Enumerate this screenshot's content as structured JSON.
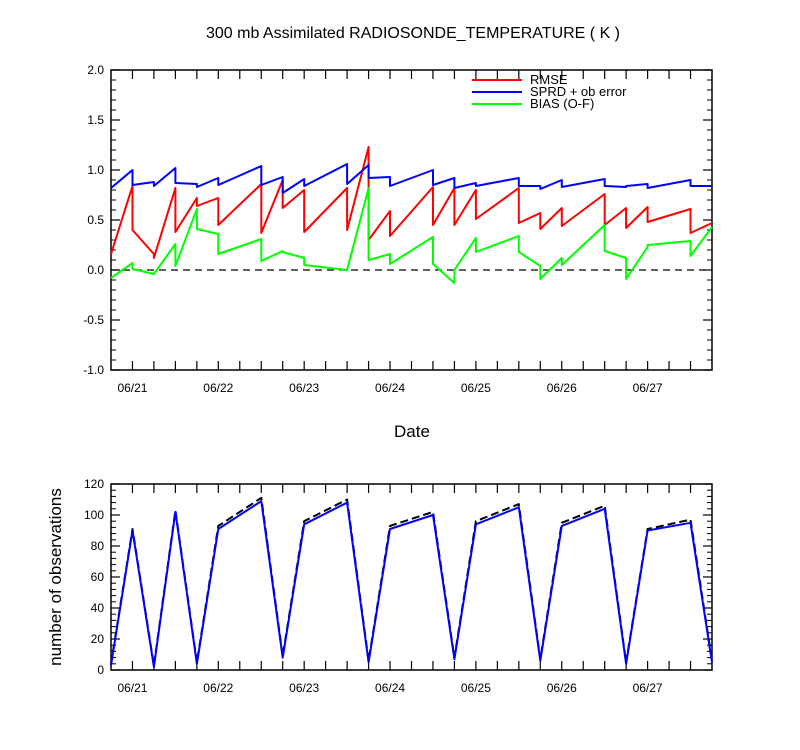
{
  "title": "300 mb Assimilated RADIOSONDE_TEMPERATURE ( K )",
  "chart_data": [
    {
      "type": "line",
      "title": "300 mb Assimilated RADIOSONDE_TEMPERATURE ( K )",
      "xlabel": "Date",
      "ylabel": "",
      "xlim": [
        0,
        7
      ],
      "ylim": [
        -1.0,
        2.0
      ],
      "x_tick_labels": [
        "06/21",
        "06/22",
        "06/23",
        "06/24",
        "06/25",
        "06/26",
        "06/27"
      ],
      "x_tick_positions": [
        0.25,
        1.25,
        2.25,
        3.25,
        4.25,
        5.25,
        6.25
      ],
      "y_ticks": [
        -1.0,
        -0.5,
        0.0,
        0.5,
        1.0,
        1.5,
        2.0
      ],
      "y_tick_labels": [
        "-1.0",
        "-0.5",
        "0.0",
        "0.5",
        "1.0",
        "1.5",
        "2.0"
      ],
      "zero_line": true,
      "legend_position": "top-right",
      "series": [
        {
          "name": "RMSE",
          "color": "#ff0000",
          "points": [
            [
              0,
              0.16
            ],
            [
              0.25,
              0.84
            ],
            [
              0.25,
              0.4
            ],
            [
              0.5,
              0.16
            ],
            [
              0.5,
              0.12
            ],
            [
              0.75,
              0.82
            ],
            [
              0.75,
              0.38
            ],
            [
              1.0,
              0.72
            ],
            [
              1.0,
              0.64
            ],
            [
              1.25,
              0.72
            ],
            [
              1.25,
              0.45
            ],
            [
              1.75,
              0.86
            ],
            [
              1.75,
              0.37
            ],
            [
              2.0,
              0.9
            ],
            [
              2.0,
              0.62
            ],
            [
              2.25,
              0.8
            ],
            [
              2.25,
              0.38
            ],
            [
              2.75,
              0.82
            ],
            [
              2.75,
              0.4
            ],
            [
              3.0,
              1.23
            ],
            [
              3.0,
              0.3
            ],
            [
              3.25,
              0.59
            ],
            [
              3.25,
              0.34
            ],
            [
              3.75,
              0.83
            ],
            [
              3.75,
              0.45
            ],
            [
              4.0,
              0.82
            ],
            [
              4.0,
              0.45
            ],
            [
              4.25,
              0.8
            ],
            [
              4.25,
              0.51
            ],
            [
              4.75,
              0.82
            ],
            [
              4.75,
              0.47
            ],
            [
              5.0,
              0.57
            ],
            [
              5.0,
              0.41
            ],
            [
              5.25,
              0.62
            ],
            [
              5.25,
              0.44
            ],
            [
              5.75,
              0.76
            ],
            [
              5.75,
              0.45
            ],
            [
              6.0,
              0.62
            ],
            [
              6.0,
              0.42
            ],
            [
              6.25,
              0.63
            ],
            [
              6.25,
              0.48
            ],
            [
              6.75,
              0.61
            ],
            [
              6.75,
              0.37
            ],
            [
              7.0,
              0.47
            ]
          ]
        },
        {
          "name": "SPRD + ob error",
          "color": "#0000ff",
          "points": [
            [
              0,
              0.82
            ],
            [
              0.25,
              1.0
            ],
            [
              0.25,
              0.85
            ],
            [
              0.5,
              0.88
            ],
            [
              0.5,
              0.84
            ],
            [
              0.75,
              1.02
            ],
            [
              0.75,
              0.87
            ],
            [
              1.0,
              0.86
            ],
            [
              1.0,
              0.83
            ],
            [
              1.25,
              0.92
            ],
            [
              1.25,
              0.85
            ],
            [
              1.75,
              1.04
            ],
            [
              1.75,
              0.85
            ],
            [
              2.0,
              0.93
            ],
            [
              2.0,
              0.77
            ],
            [
              2.25,
              0.91
            ],
            [
              2.25,
              0.84
            ],
            [
              2.75,
              1.06
            ],
            [
              2.75,
              0.86
            ],
            [
              3.0,
              1.05
            ],
            [
              3.0,
              0.92
            ],
            [
              3.25,
              0.93
            ],
            [
              3.25,
              0.84
            ],
            [
              3.75,
              1.0
            ],
            [
              3.75,
              0.85
            ],
            [
              4.0,
              0.92
            ],
            [
              4.0,
              0.82
            ],
            [
              4.25,
              0.87
            ],
            [
              4.25,
              0.84
            ],
            [
              4.75,
              0.92
            ],
            [
              4.75,
              0.84
            ],
            [
              5.0,
              0.84
            ],
            [
              5.0,
              0.81
            ],
            [
              5.25,
              0.9
            ],
            [
              5.25,
              0.83
            ],
            [
              5.75,
              0.91
            ],
            [
              5.75,
              0.84
            ],
            [
              6.0,
              0.83
            ],
            [
              6.0,
              0.84
            ],
            [
              6.25,
              0.86
            ],
            [
              6.25,
              0.82
            ],
            [
              6.75,
              0.9
            ],
            [
              6.75,
              0.84
            ],
            [
              7.0,
              0.84
            ]
          ]
        },
        {
          "name": "BIAS (O-F)",
          "color": "#00ff00",
          "points": [
            [
              0,
              -0.08
            ],
            [
              0.25,
              0.07
            ],
            [
              0.25,
              0.01
            ],
            [
              0.5,
              -0.04
            ],
            [
              0.75,
              0.26
            ],
            [
              0.75,
              0.04
            ],
            [
              1.0,
              0.61
            ],
            [
              1.0,
              0.41
            ],
            [
              1.25,
              0.36
            ],
            [
              1.25,
              0.16
            ],
            [
              1.75,
              0.31
            ],
            [
              1.75,
              0.09
            ],
            [
              2.0,
              0.19
            ],
            [
              2.0,
              0.18
            ],
            [
              2.25,
              0.12
            ],
            [
              2.25,
              0.05
            ],
            [
              2.75,
              0.0
            ],
            [
              3.0,
              0.82
            ],
            [
              3.0,
              0.1
            ],
            [
              3.25,
              0.16
            ],
            [
              3.25,
              0.06
            ],
            [
              3.75,
              0.33
            ],
            [
              3.75,
              0.06
            ],
            [
              4.0,
              -0.13
            ],
            [
              4.0,
              0.0
            ],
            [
              4.25,
              0.32
            ],
            [
              4.25,
              0.18
            ],
            [
              4.75,
              0.34
            ],
            [
              4.75,
              0.18
            ],
            [
              5.0,
              0.04
            ],
            [
              5.0,
              -0.09
            ],
            [
              5.25,
              0.12
            ],
            [
              5.25,
              0.05
            ],
            [
              5.75,
              0.45
            ],
            [
              5.75,
              0.19
            ],
            [
              6.0,
              0.12
            ],
            [
              6.0,
              -0.09
            ],
            [
              6.25,
              0.23
            ],
            [
              6.25,
              0.25
            ],
            [
              6.75,
              0.29
            ],
            [
              6.75,
              0.14
            ],
            [
              7.0,
              0.43
            ]
          ]
        }
      ]
    },
    {
      "type": "line",
      "title": "",
      "xlabel": "",
      "ylabel": "number of observations",
      "xlim": [
        0,
        7
      ],
      "ylim": [
        0,
        120
      ],
      "x_tick_labels": [
        "06/21",
        "06/22",
        "06/23",
        "06/24",
        "06/25",
        "06/26",
        "06/27"
      ],
      "x_tick_positions": [
        0.25,
        1.25,
        2.25,
        3.25,
        4.25,
        5.25,
        6.25
      ],
      "y_ticks": [
        0,
        20,
        40,
        60,
        80,
        100,
        120
      ],
      "y_tick_labels": [
        "0",
        "20",
        "40",
        "60",
        "80",
        "100",
        "120"
      ],
      "series": [
        {
          "name": "",
          "color": "#000000",
          "dashed": true,
          "points": [
            [
              0,
              4
            ],
            [
              0.25,
              91
            ],
            [
              0.5,
              3
            ],
            [
              0.75,
              103
            ],
            [
              1.0,
              5
            ],
            [
              1.25,
              93
            ],
            [
              1.75,
              111
            ],
            [
              2.0,
              9
            ],
            [
              2.25,
              96
            ],
            [
              2.75,
              110
            ],
            [
              3.0,
              6
            ],
            [
              3.25,
              93
            ],
            [
              3.75,
              102
            ],
            [
              4.0,
              8
            ],
            [
              4.25,
              96
            ],
            [
              4.75,
              107
            ],
            [
              5.0,
              7
            ],
            [
              5.25,
              95
            ],
            [
              5.75,
              106
            ],
            [
              6.0,
              5
            ],
            [
              6.25,
              91
            ],
            [
              6.75,
              97
            ],
            [
              7.0,
              6
            ]
          ]
        },
        {
          "name": "",
          "color": "#0000ff",
          "dashed": false,
          "points": [
            [
              0,
              3
            ],
            [
              0.25,
              90
            ],
            [
              0.5,
              2
            ],
            [
              0.75,
              102
            ],
            [
              1.0,
              4
            ],
            [
              1.25,
              91
            ],
            [
              1.75,
              109
            ],
            [
              2.0,
              8
            ],
            [
              2.25,
              94
            ],
            [
              2.75,
              108
            ],
            [
              3.0,
              5
            ],
            [
              3.25,
              91
            ],
            [
              3.75,
              100
            ],
            [
              4.0,
              7
            ],
            [
              4.25,
              94
            ],
            [
              4.75,
              105
            ],
            [
              5.0,
              6
            ],
            [
              5.25,
              93
            ],
            [
              5.75,
              104
            ],
            [
              6.0,
              4
            ],
            [
              6.25,
              90
            ],
            [
              6.75,
              95
            ],
            [
              7.0,
              5
            ]
          ]
        }
      ]
    }
  ]
}
